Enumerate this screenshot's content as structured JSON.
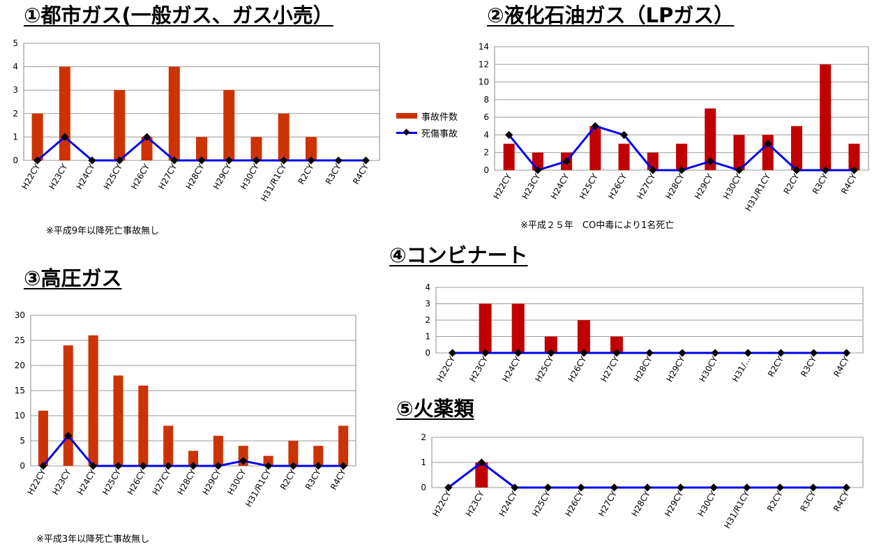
{
  "legend": {
    "bar_label": "事故件数",
    "line_label": "死傷事故",
    "bar_color": "#cc3300",
    "line_color": "#0000ee"
  },
  "chart_data": [
    {
      "type": "bar",
      "title": "①都市ガス(一般ガス、ガス小売）",
      "categories": [
        "H22CY",
        "H23CY",
        "H24CY",
        "H25CY",
        "H26CY",
        "H27CY",
        "H28CY",
        "H29CY",
        "H30CY",
        "H31/R1CY",
        "R2CY",
        "R3CY",
        "R4CY"
      ],
      "yticks": [
        "0",
        "1",
        "2",
        "3",
        "4",
        "5"
      ],
      "ylim": [
        0,
        5
      ],
      "bar_color": "#cc3300",
      "series": [
        {
          "name": "事故件数",
          "kind": "bar",
          "values": [
            2,
            4,
            0,
            3,
            1,
            4,
            1,
            3,
            1,
            2,
            1,
            0,
            0
          ]
        },
        {
          "name": "死傷事故",
          "kind": "line",
          "values": [
            0,
            1,
            0,
            0,
            1,
            0,
            0,
            0,
            0,
            0,
            0,
            0,
            0
          ]
        }
      ],
      "note": "※平成9年以降死亡事故無し"
    },
    {
      "type": "bar",
      "title": "②液化石油ガス（LPガス）",
      "categories": [
        "H22CY",
        "H23CY",
        "H24CY",
        "H25CY",
        "H26CY",
        "H27CY",
        "H28CY",
        "H29CY",
        "H30CY",
        "H31/R1CY",
        "R2CY",
        "R3CY",
        "R4CY"
      ],
      "yticks": [
        "0",
        "2",
        "4",
        "6",
        "8",
        "10",
        "12",
        "14"
      ],
      "ylim": [
        0,
        14
      ],
      "bar_color": "#c00000",
      "series": [
        {
          "name": "事故件数",
          "kind": "bar",
          "values": [
            3,
            2,
            2,
            5,
            3,
            2,
            3,
            7,
            4,
            4,
            5,
            12,
            3
          ]
        },
        {
          "name": "死傷事故",
          "kind": "line",
          "values": [
            4,
            0,
            1,
            5,
            4,
            0,
            0,
            1,
            0,
            3,
            0,
            0,
            0
          ]
        }
      ],
      "note": "※平成２５年　CO中毒により1名死亡"
    },
    {
      "type": "bar",
      "title": "③高圧ガス",
      "categories": [
        "H22CY",
        "H23CY",
        "H24CY",
        "H25CY",
        "H26CY",
        "H27CY",
        "H28CY",
        "H29CY",
        "H30CY",
        "H31/R1CY",
        "R2CY",
        "R3CY",
        "R4CY"
      ],
      "yticks": [
        "0",
        "5",
        "10",
        "15",
        "20",
        "25",
        "30"
      ],
      "ylim": [
        0,
        30
      ],
      "bar_color": "#cc3300",
      "series": [
        {
          "name": "事故件数",
          "kind": "bar",
          "values": [
            11,
            24,
            26,
            18,
            16,
            8,
            3,
            6,
            4,
            2,
            5,
            4,
            8
          ]
        },
        {
          "name": "死傷事故",
          "kind": "line",
          "values": [
            0,
            6,
            0,
            0,
            0,
            0,
            0,
            0,
            1,
            0,
            0,
            0,
            0
          ]
        }
      ],
      "note": "※平成3年以降死亡事故無し"
    },
    {
      "type": "bar",
      "title": "④コンビナート",
      "categories": [
        "H22CY",
        "H23CY",
        "H24CY",
        "H25CY",
        "H26CY",
        "H27CY",
        "H28CY",
        "H29CY",
        "H30CY",
        "H31/...",
        "R2CY",
        "R3CY",
        "R4CY"
      ],
      "yticks": [
        "0",
        "1",
        "2",
        "3",
        "4"
      ],
      "ylim": [
        0,
        4
      ],
      "bar_color": "#c00000",
      "series": [
        {
          "name": "事故件数",
          "kind": "bar",
          "values": [
            0,
            3,
            3,
            1,
            2,
            1,
            0,
            0,
            0,
            0,
            0,
            0,
            0
          ]
        },
        {
          "name": "死傷事故",
          "kind": "line",
          "values": [
            0,
            0,
            0,
            0,
            0,
            0,
            0,
            0,
            0,
            0,
            0,
            0,
            0
          ]
        }
      ],
      "note": ""
    },
    {
      "type": "bar",
      "title": "⑤火薬類",
      "categories": [
        "H22CY",
        "H23CY",
        "H24CY",
        "H25CY",
        "H26CY",
        "H27CY",
        "H28CY",
        "H29CY",
        "H30CY",
        "H31/R1CY",
        "R2CY",
        "R3CY",
        "R4CY"
      ],
      "yticks": [
        "0",
        "1",
        "2"
      ],
      "ylim": [
        0,
        2
      ],
      "bar_color": "#c00000",
      "series": [
        {
          "name": "事故件数",
          "kind": "bar",
          "values": [
            0,
            1,
            0,
            0,
            0,
            0,
            0,
            0,
            0,
            0,
            0,
            0,
            0
          ]
        },
        {
          "name": "死傷事故",
          "kind": "line",
          "values": [
            0,
            1,
            0,
            0,
            0,
            0,
            0,
            0,
            0,
            0,
            0,
            0,
            0
          ]
        }
      ],
      "note": ""
    }
  ]
}
